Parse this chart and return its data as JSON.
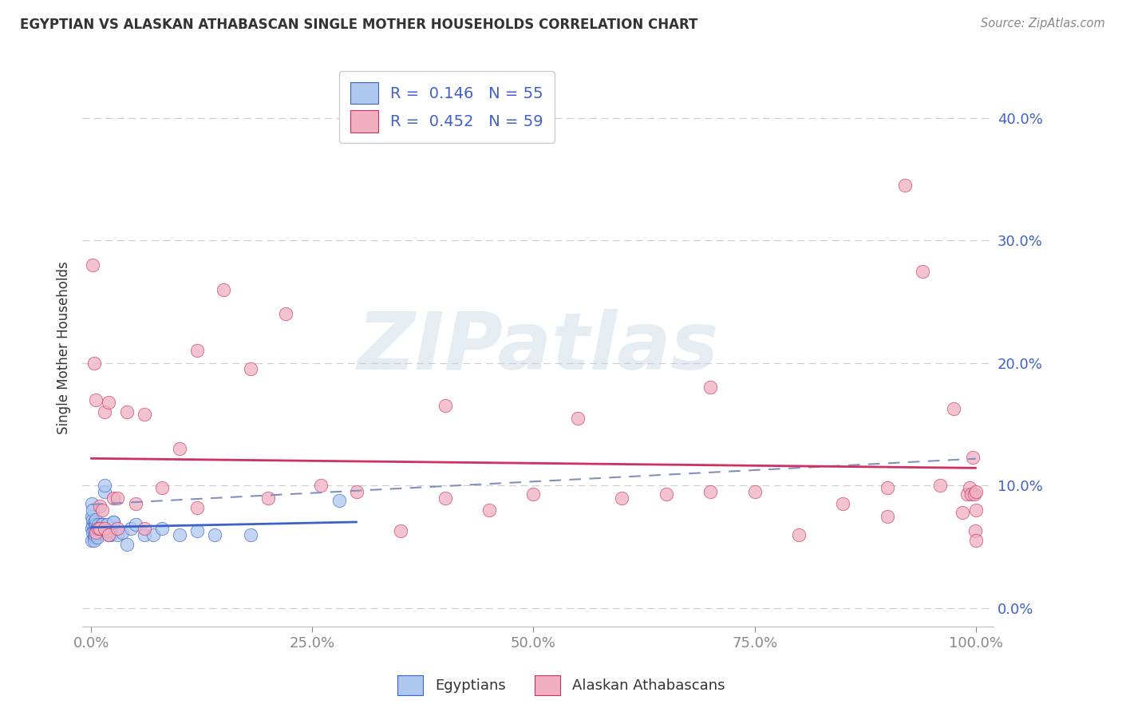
{
  "title": "EGYPTIAN VS ALASKAN ATHABASCAN SINGLE MOTHER HOUSEHOLDS CORRELATION CHART",
  "source": "Source: ZipAtlas.com",
  "ylabel": "Single Mother Households",
  "watermark": "ZIPatlas",
  "legend_R_egyptian": "0.146",
  "legend_N_egyptian": "55",
  "legend_R_athabascan": "0.452",
  "legend_N_athabascan": "59",
  "egyptian_color_face": "#aec8f0",
  "egyptian_color_edge": "#3a62c8",
  "athabascan_color_face": "#f0b0c0",
  "athabascan_color_edge": "#d03060",
  "line_egyptian_color": "#3a62c8",
  "line_athabascan_color": "#d03060",
  "dashed_line_color": "#8090c0",
  "bg_color": "#ffffff",
  "grid_color": "#cccccc",
  "text_color": "#333333",
  "axis_label_color": "#4060cc",
  "xlim": [
    0.0,
    1.0
  ],
  "ylim": [
    0.0,
    0.42
  ],
  "x_ticks": [
    0.0,
    0.25,
    0.5,
    0.75,
    1.0
  ],
  "y_ticks": [
    0.0,
    0.1,
    0.2,
    0.3,
    0.4
  ],
  "egyptian_x": [
    0.001,
    0.001,
    0.001,
    0.001,
    0.002,
    0.002,
    0.002,
    0.002,
    0.003,
    0.003,
    0.003,
    0.004,
    0.004,
    0.005,
    0.005,
    0.005,
    0.006,
    0.006,
    0.007,
    0.008,
    0.009,
    0.01,
    0.011,
    0.012,
    0.013,
    0.015,
    0.018,
    0.02,
    0.022,
    0.025,
    0.003,
    0.004,
    0.006,
    0.007,
    0.008,
    0.009,
    0.01,
    0.012,
    0.015,
    0.018,
    0.02,
    0.025,
    0.03,
    0.035,
    0.04,
    0.045,
    0.05,
    0.06,
    0.07,
    0.08,
    0.1,
    0.12,
    0.14,
    0.18,
    0.28
  ],
  "egyptian_y": [
    0.055,
    0.065,
    0.075,
    0.085,
    0.068,
    0.072,
    0.08,
    0.062,
    0.058,
    0.063,
    0.07,
    0.058,
    0.068,
    0.063,
    0.068,
    0.072,
    0.06,
    0.065,
    0.06,
    0.065,
    0.063,
    0.065,
    0.068,
    0.068,
    0.068,
    0.095,
    0.068,
    0.065,
    0.06,
    0.07,
    0.055,
    0.06,
    0.062,
    0.058,
    0.068,
    0.065,
    0.065,
    0.068,
    0.1,
    0.068,
    0.06,
    0.07,
    0.06,
    0.062,
    0.052,
    0.065,
    0.068,
    0.06,
    0.06,
    0.065,
    0.06,
    0.063,
    0.06,
    0.06,
    0.088
  ],
  "athabascan_x": [
    0.002,
    0.003,
    0.005,
    0.008,
    0.01,
    0.012,
    0.015,
    0.018,
    0.02,
    0.025,
    0.03,
    0.04,
    0.05,
    0.06,
    0.08,
    0.1,
    0.12,
    0.15,
    0.18,
    0.22,
    0.26,
    0.3,
    0.35,
    0.4,
    0.45,
    0.5,
    0.55,
    0.6,
    0.65,
    0.7,
    0.75,
    0.8,
    0.85,
    0.9,
    0.92,
    0.94,
    0.96,
    0.975,
    0.985,
    0.99,
    0.993,
    0.995,
    0.997,
    0.998,
    0.999,
    1.0,
    1.0,
    1.0,
    0.01,
    0.015,
    0.02,
    0.03,
    0.005,
    0.06,
    0.12,
    0.2,
    0.4,
    0.7,
    0.9
  ],
  "athabascan_y": [
    0.28,
    0.2,
    0.062,
    0.065,
    0.083,
    0.08,
    0.16,
    0.063,
    0.168,
    0.09,
    0.09,
    0.16,
    0.085,
    0.158,
    0.098,
    0.13,
    0.21,
    0.26,
    0.195,
    0.24,
    0.1,
    0.095,
    0.063,
    0.165,
    0.08,
    0.093,
    0.155,
    0.09,
    0.093,
    0.095,
    0.095,
    0.06,
    0.085,
    0.098,
    0.345,
    0.275,
    0.1,
    0.163,
    0.078,
    0.093,
    0.098,
    0.093,
    0.123,
    0.093,
    0.063,
    0.055,
    0.095,
    0.08,
    0.065,
    0.065,
    0.06,
    0.065,
    0.17,
    0.065,
    0.082,
    0.09,
    0.09,
    0.18,
    0.075
  ]
}
